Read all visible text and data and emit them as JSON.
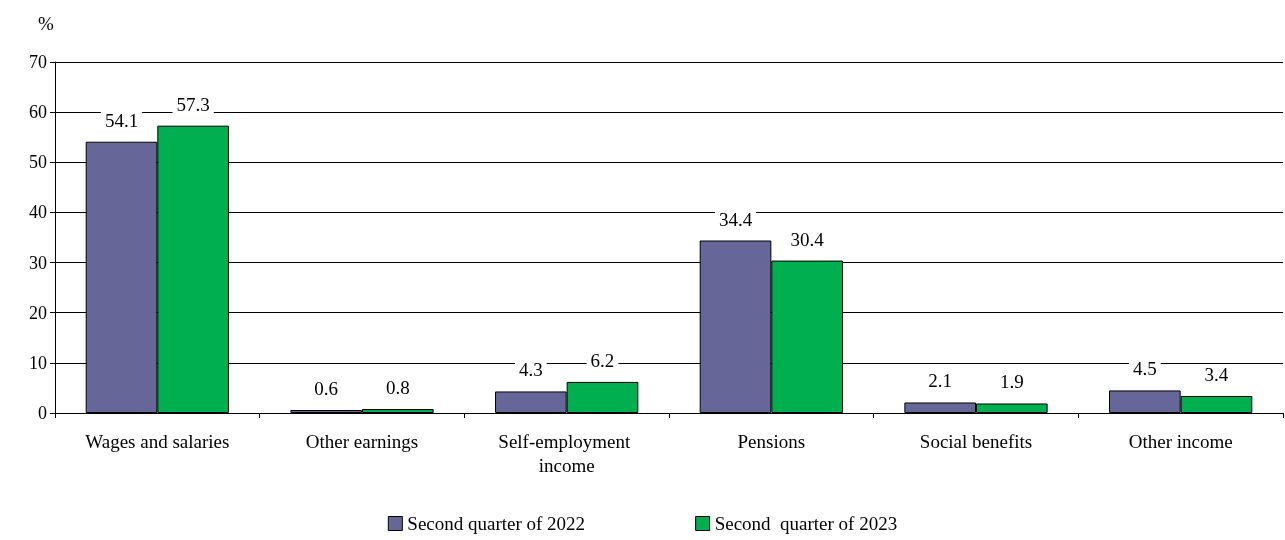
{
  "chart_data": {
    "type": "bar",
    "ylabel": "%",
    "categories": [
      "Wages and salaries",
      "Other earnings",
      "Self-employment income",
      "Pensions",
      "Social benefits",
      "Other income"
    ],
    "series": [
      {
        "name": "Second quarter of 2022",
        "color": "#666699",
        "values": [
          54.1,
          0.6,
          4.3,
          34.4,
          2.1,
          4.5
        ]
      },
      {
        "name": "Second  quarter of 2023",
        "color": "#00b050",
        "values": [
          57.3,
          0.8,
          6.2,
          30.4,
          1.9,
          3.4
        ]
      }
    ],
    "ylim": [
      0,
      70
    ],
    "yticks": [
      0,
      10,
      20,
      30,
      40,
      50,
      60,
      70
    ],
    "grid": "y",
    "legend": "bottom",
    "data_labels": true
  }
}
